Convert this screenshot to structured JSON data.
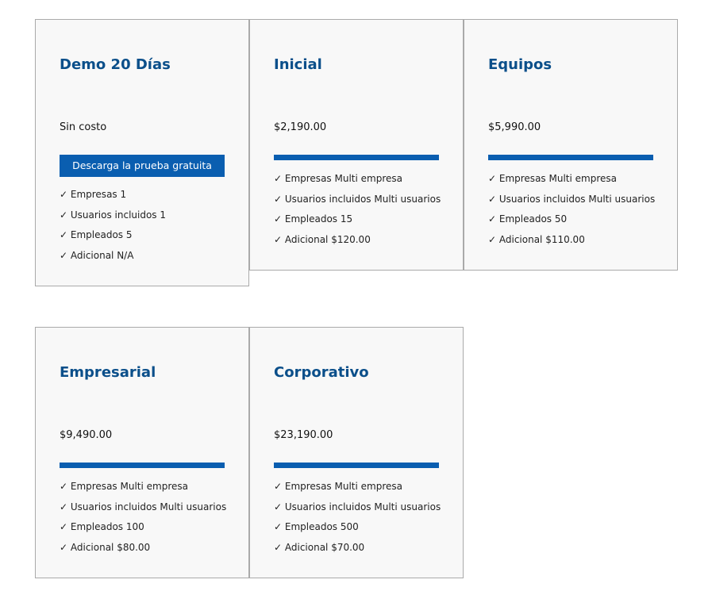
{
  "plans": [
    {
      "title": "Demo 20 Días",
      "price": "Sin costo",
      "button": "Descarga la prueba gratuita",
      "features": [
        "✓ Empresas 1",
        "✓ Usuarios incluidos 1",
        "✓ Empleados 5",
        "✓ Adicional N/A"
      ]
    },
    {
      "title": "Inicial",
      "price": "$2,190.00",
      "features": [
        "✓ Empresas Multi empresa",
        "✓ Usuarios incluidos Multi usuarios",
        "✓ Empleados 15",
        "✓ Adicional $120.00"
      ]
    },
    {
      "title": "Equipos",
      "price": "$5,990.00",
      "features": [
        "✓ Empresas Multi empresa",
        "✓ Usuarios incluidos Multi usuarios",
        "✓ Empleados 50",
        "✓ Adicional $110.00"
      ]
    },
    {
      "title": "Empresarial",
      "price": "$9,490.00",
      "features": [
        "✓ Empresas Multi empresa",
        "✓ Usuarios incluidos Multi usuarios",
        "✓ Empleados 100",
        "✓ Adicional $80.00"
      ]
    },
    {
      "title": "Corporativo",
      "price": "$23,190.00",
      "features": [
        "✓ Empresas Multi empresa",
        "✓ Usuarios incluidos Multi usuarios",
        "✓ Empleados 500",
        "✓ Adicional $70.00"
      ]
    }
  ]
}
